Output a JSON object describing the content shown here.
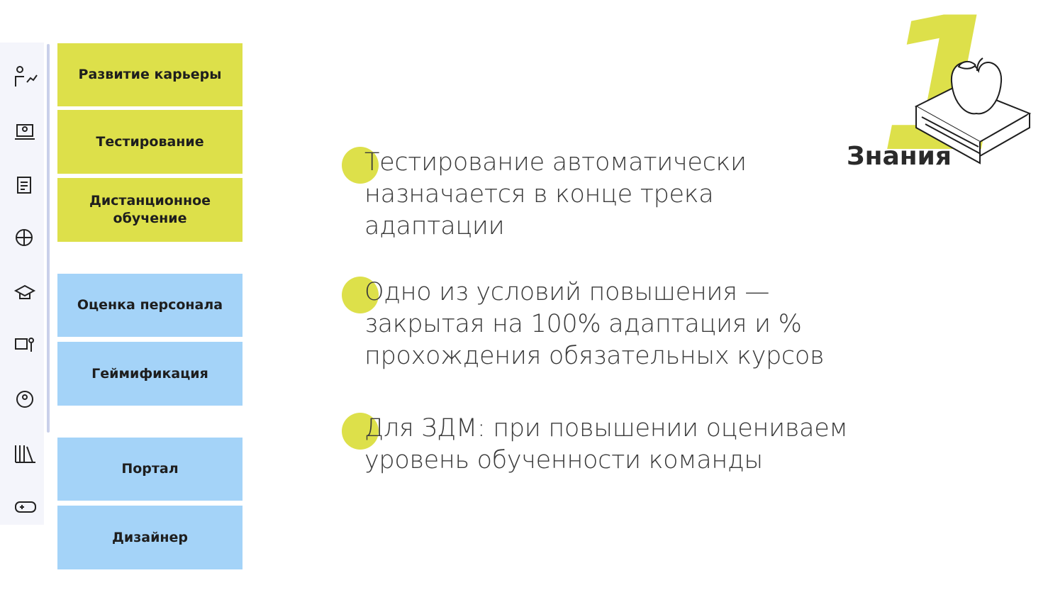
{
  "header": {
    "number": "1",
    "title": "Знания"
  },
  "sidebar": {
    "items": [
      "Развитие карьеры",
      "Тестирование",
      "Дистанционное обучение",
      "Оценка персонала",
      "Геймификация",
      "Портал",
      "Дизайнер"
    ]
  },
  "bullets": [
    {
      "lines": [
        "Тестирование автоматически",
        "назначается в конце трека",
        "адаптации"
      ]
    },
    {
      "lines": [
        "Одно из условий повышения —",
        "закрытая на 100% адаптация и %",
        "прохождения обязательных курсов"
      ]
    },
    {
      "lines": [
        "Для ЗДМ: при повышении оцениваем",
        "уровень обученности команды"
      ]
    }
  ]
}
